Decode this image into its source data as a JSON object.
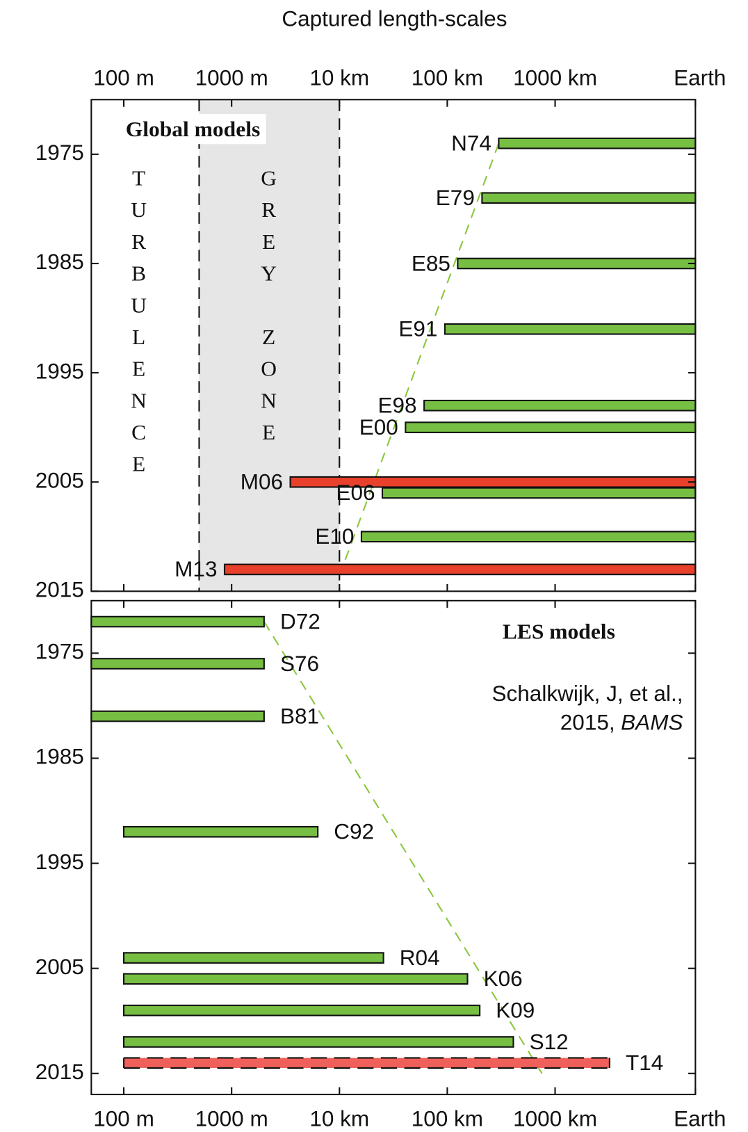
{
  "chart_data": [
    {
      "type": "range_bar",
      "title": "Captured length-scales",
      "annotation": "Global models",
      "zone_labels": [
        "TURBULENCE",
        "GREY ZONE"
      ],
      "grey_zone": [
        500,
        10000
      ],
      "xscale": "log",
      "xaxis": "top",
      "label_side": "left",
      "xlim": [
        50,
        20000000
      ],
      "xticks": [
        {
          "value": 100,
          "label": "100 m"
        },
        {
          "value": 1000,
          "label": "1000 m"
        },
        {
          "value": 10000,
          "label": "10 km"
        },
        {
          "value": 100000,
          "label": "100 km"
        },
        {
          "value": 1000000,
          "label": "1000 km"
        },
        {
          "value": 20000000,
          "label": "Earth"
        }
      ],
      "ylim": [
        1970,
        2015
      ],
      "yticks": [
        1975,
        1985,
        1995,
        2005,
        2015
      ],
      "trend": {
        "x": [
          300000,
          10500
        ],
        "y": [
          1974,
          2013
        ]
      },
      "trend_color": "#8cc63f",
      "bars": [
        {
          "name": "N74",
          "year": 1974,
          "start": 300000,
          "end": 20000000,
          "color": "#77bf43"
        },
        {
          "name": "E79",
          "year": 1979,
          "start": 210000,
          "end": 20000000,
          "color": "#77bf43"
        },
        {
          "name": "E85",
          "year": 1985,
          "start": 125000,
          "end": 20000000,
          "color": "#77bf43"
        },
        {
          "name": "E91",
          "year": 1991,
          "start": 95000,
          "end": 20000000,
          "color": "#77bf43"
        },
        {
          "name": "E98",
          "year": 1998,
          "start": 61000,
          "end": 20000000,
          "color": "#77bf43"
        },
        {
          "name": "E00",
          "year": 2000,
          "start": 41000,
          "end": 20000000,
          "color": "#77bf43"
        },
        {
          "name": "M06",
          "year": 2005,
          "start": 3500,
          "end": 20000000,
          "color": "#e8402a"
        },
        {
          "name": "E06",
          "year": 2006,
          "start": 25000,
          "end": 20000000,
          "color": "#77bf43"
        },
        {
          "name": "E10",
          "year": 2010,
          "start": 16000,
          "end": 20000000,
          "color": "#77bf43"
        },
        {
          "name": "M13",
          "year": 2013,
          "start": 860,
          "end": 20000000,
          "color": "#e8402a"
        }
      ]
    },
    {
      "type": "range_bar",
      "annotation": "LES models",
      "citation": [
        "Schalkwijk, J, et al.,",
        "2015,",
        "BAMS"
      ],
      "xscale": "log",
      "xaxis": "bottom",
      "label_side": "right",
      "xlim": [
        50,
        20000000
      ],
      "xticks": [
        {
          "value": 100,
          "label": "100 m"
        },
        {
          "value": 1000,
          "label": "1000 m"
        },
        {
          "value": 10000,
          "label": "10 km"
        },
        {
          "value": 100000,
          "label": "100 km"
        },
        {
          "value": 1000000,
          "label": "1000 km"
        },
        {
          "value": 20000000,
          "label": "Earth"
        }
      ],
      "ylim": [
        1970,
        2017
      ],
      "yticks": [
        1975,
        1985,
        1995,
        2005,
        2015
      ],
      "trend": {
        "x": [
          2000,
          755000
        ],
        "y": [
          1972,
          2015
        ]
      },
      "trend_color": "#8cc63f",
      "bars": [
        {
          "name": "D72",
          "year": 1972,
          "start": 50,
          "end": 2000,
          "color": "#77bf43"
        },
        {
          "name": "S76",
          "year": 1976,
          "start": 50,
          "end": 2000,
          "color": "#77bf43"
        },
        {
          "name": "B81",
          "year": 1981,
          "start": 50,
          "end": 2000,
          "color": "#77bf43"
        },
        {
          "name": "C92",
          "year": 1992,
          "start": 100,
          "end": 6300,
          "color": "#77bf43"
        },
        {
          "name": "R04",
          "year": 2004,
          "start": 100,
          "end": 25600,
          "color": "#77bf43"
        },
        {
          "name": "K06",
          "year": 2006,
          "start": 100,
          "end": 154000,
          "color": "#77bf43"
        },
        {
          "name": "K09",
          "year": 2009,
          "start": 100,
          "end": 200000,
          "color": "#77bf43"
        },
        {
          "name": "S12",
          "year": 2012,
          "start": 100,
          "end": 410000,
          "color": "#77bf43"
        },
        {
          "name": "T14",
          "year": 2014,
          "start": 100,
          "end": 3200000,
          "color": "#f0605a",
          "style": "dashed"
        }
      ]
    }
  ]
}
